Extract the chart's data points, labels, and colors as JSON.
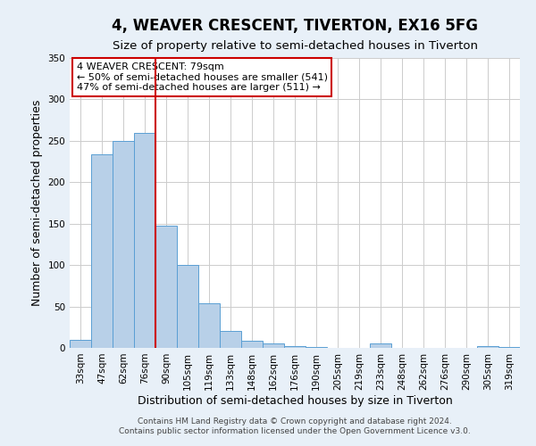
{
  "title": "4, WEAVER CRESCENT, TIVERTON, EX16 5FG",
  "subtitle": "Size of property relative to semi-detached houses in Tiverton",
  "xlabel": "Distribution of semi-detached houses by size in Tiverton",
  "ylabel": "Number of semi-detached properties",
  "categories": [
    "33sqm",
    "47sqm",
    "62sqm",
    "76sqm",
    "90sqm",
    "105sqm",
    "119sqm",
    "133sqm",
    "148sqm",
    "162sqm",
    "176sqm",
    "190sqm",
    "205sqm",
    "219sqm",
    "233sqm",
    "248sqm",
    "262sqm",
    "276sqm",
    "290sqm",
    "305sqm",
    "319sqm"
  ],
  "values": [
    10,
    234,
    250,
    260,
    148,
    100,
    54,
    20,
    9,
    5,
    2,
    1,
    0,
    0,
    5,
    0,
    0,
    0,
    0,
    2,
    1
  ],
  "bar_color": "#b8d0e8",
  "bar_edge_color": "#5a9fd4",
  "vline_color": "#cc0000",
  "vline_pos": 3.5,
  "annotation_title": "4 WEAVER CRESCENT: 79sqm",
  "annotation_line1": "← 50% of semi-detached houses are smaller (541)",
  "annotation_line2": "47% of semi-detached houses are larger (511) →",
  "annotation_box_color": "#cc0000",
  "ylim": [
    0,
    350
  ],
  "yticks": [
    0,
    50,
    100,
    150,
    200,
    250,
    300,
    350
  ],
  "footer1": "Contains HM Land Registry data © Crown copyright and database right 2024.",
  "footer2": "Contains public sector information licensed under the Open Government Licence v3.0.",
  "bg_color": "#e8f0f8",
  "plot_bg_color": "#ffffff",
  "title_fontsize": 12,
  "subtitle_fontsize": 9.5,
  "axis_label_fontsize": 9,
  "tick_fontsize": 7.5,
  "footer_fontsize": 6.5
}
